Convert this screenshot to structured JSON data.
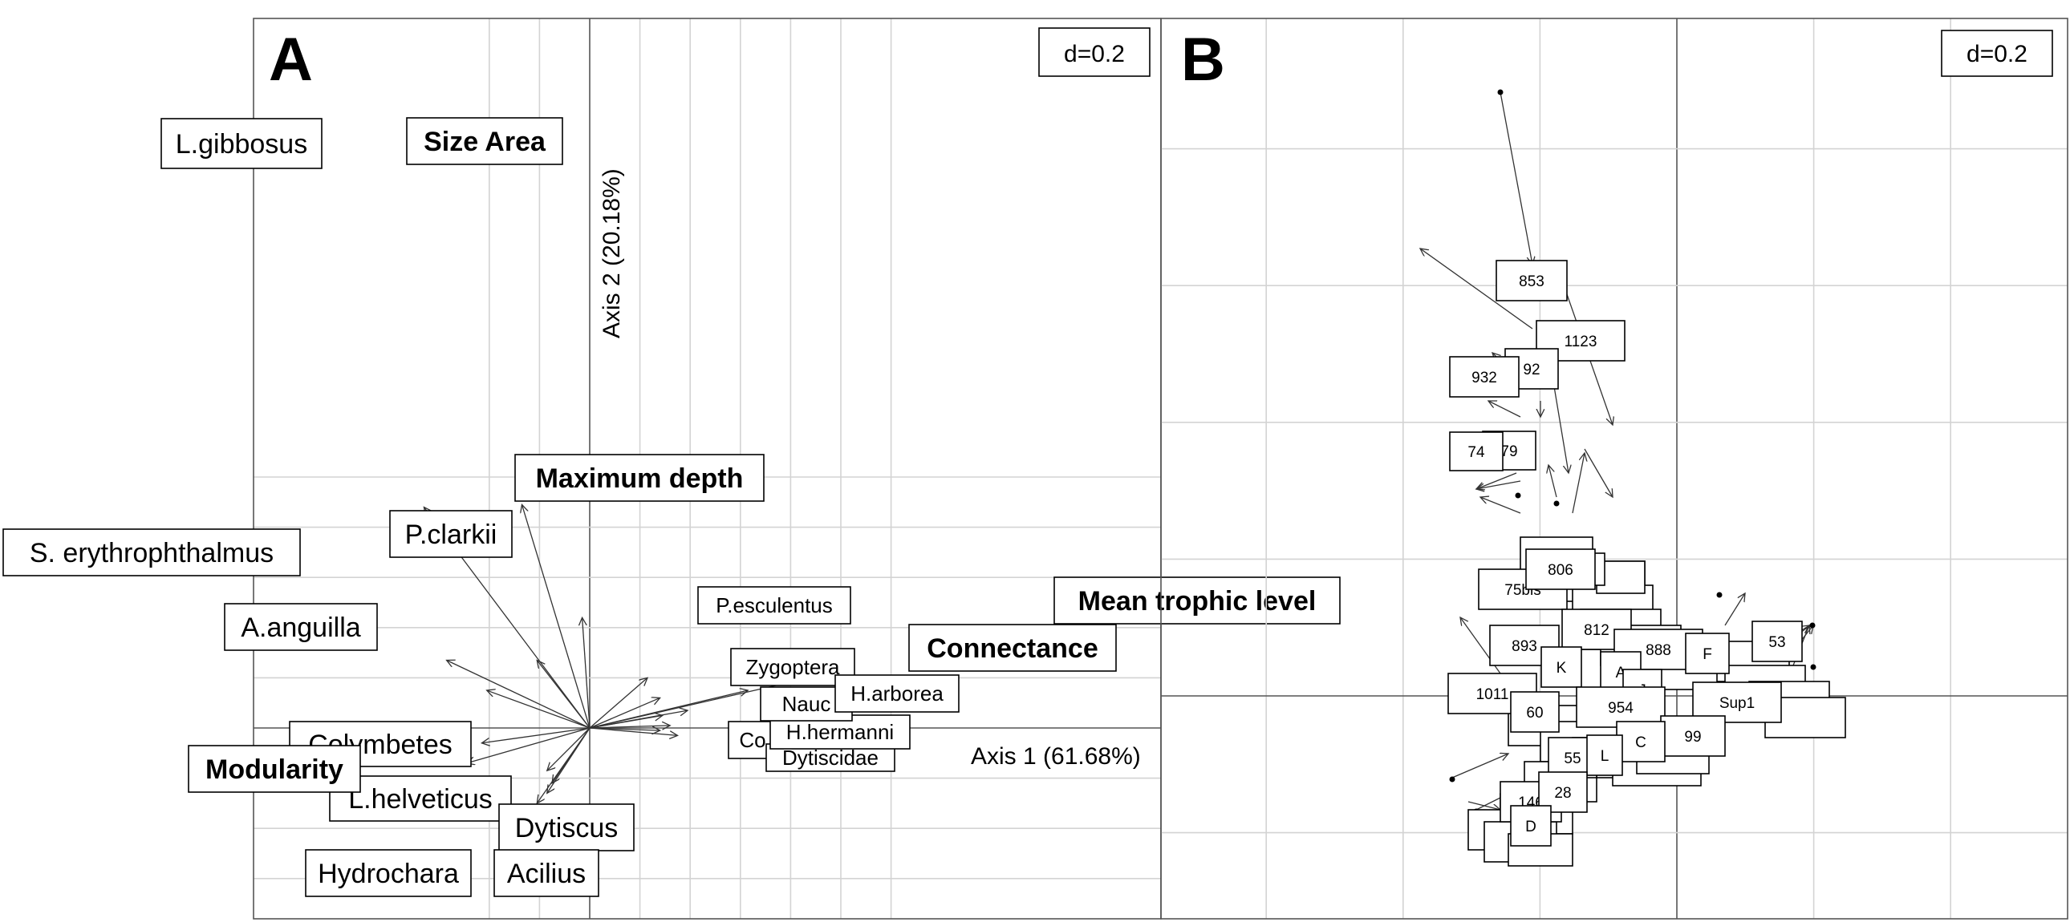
{
  "chart_data": [
    {
      "type": "biplot",
      "panel": "A",
      "scale_label": "d=0.2",
      "xlabel": "Axis 1 (61.68%)",
      "ylabel": "Axis 2 (20.18%)",
      "xlim": [
        -0.6,
        1.2
      ],
      "ylim": [
        -0.7,
        1.1
      ],
      "grid_step": 0.2,
      "variables": [
        {
          "label": "Size Area",
          "x": -0.27,
          "y": 0.89,
          "bold": true
        },
        {
          "label": "Maximum depth",
          "x": -0.03,
          "y": 0.44,
          "bold": true
        },
        {
          "label": "Mean trophic level",
          "x": 0.92,
          "y": 0.21,
          "bold": true
        },
        {
          "label": "Connectance",
          "x": 0.63,
          "y": 0.15,
          "bold": true
        },
        {
          "label": "Modularity",
          "x": -0.49,
          "y": -0.14,
          "bold": true
        }
      ],
      "species": [
        {
          "label": "L.gibbosus",
          "x": -0.66,
          "y": 0.88
        },
        {
          "label": "S. erythrophthalmus",
          "x": -0.57,
          "y": 0.27
        },
        {
          "label": "P.clarkii",
          "x": -0.21,
          "y": 0.27
        },
        {
          "label": "A.anguilla",
          "x": -0.41,
          "y": 0.15
        },
        {
          "label": "Colymbetes",
          "x": -0.43,
          "y": -0.06
        },
        {
          "label": "L.helveticus",
          "x": -0.17,
          "y": -0.17
        },
        {
          "label": "Dytiscus",
          "x": -0.15,
          "y": -0.22
        },
        {
          "label": "Acilius",
          "x": -0.17,
          "y": -0.26
        },
        {
          "label": "Hydrochara",
          "x": -0.21,
          "y": -0.3
        },
        {
          "label": "P.esculentus",
          "x": 0.23,
          "y": 0.2
        },
        {
          "label": "Zygoptera",
          "x": 0.28,
          "y": 0.12
        },
        {
          "label": "H.arborea",
          "x": 0.39,
          "y": 0.07
        },
        {
          "label": "Naucoridae",
          "x": 0.29,
          "y": 0.05
        },
        {
          "label": "H.hermanni",
          "x": 0.32,
          "y": 0.01
        },
        {
          "label": "Corixidae",
          "x": 0.28,
          "y": -0.01
        },
        {
          "label": "Dytiscidae",
          "x": 0.35,
          "y": -0.03
        }
      ],
      "visible_label_text": {
        "Colymbetes": "Colymbetes",
        "Naucoridae": "Nauc",
        "Corixidae": "Co",
        "Dytiscidae": "Dytiscidae"
      }
    },
    {
      "type": "scatter",
      "panel": "B",
      "scale_label": "d=0.2",
      "xlim": [
        -0.8,
        1.4
      ],
      "ylim": [
        -1.1,
        1.0
      ],
      "grid_step": 0.2,
      "sites": [
        {
          "label": "853",
          "x": -0.39,
          "y": 0.66
        },
        {
          "label": "1123",
          "x": -0.33,
          "y": 0.6
        },
        {
          "label": "92",
          "x": -0.37,
          "y": 0.54
        },
        {
          "label": "932",
          "x": -0.47,
          "y": 0.52
        },
        {
          "label": "79",
          "x": -0.41,
          "y": 0.42
        },
        {
          "label": "74",
          "x": -0.46,
          "y": 0.42
        },
        {
          "label": "806",
          "x": -0.37,
          "y": 0.22
        },
        {
          "label": "75bis",
          "x": -0.4,
          "y": 0.17
        },
        {
          "label": "812",
          "x": -0.35,
          "y": 0.1
        },
        {
          "label": "893",
          "x": -0.45,
          "y": 0.09
        },
        {
          "label": "888",
          "x": -0.26,
          "y": 0.07
        },
        {
          "label": "F",
          "x": -0.22,
          "y": 0.06
        },
        {
          "label": "53",
          "x": -0.12,
          "y": 0.08
        },
        {
          "label": "K",
          "x": -0.39,
          "y": 0.04
        },
        {
          "label": "A",
          "x": -0.32,
          "y": 0.03
        },
        {
          "label": "J",
          "x": -0.29,
          "y": 0.01
        },
        {
          "label": "Sup1",
          "x": -0.16,
          "y": -0.01
        },
        {
          "label": "1011",
          "x": -0.51,
          "y": 0.0
        },
        {
          "label": "954",
          "x": -0.32,
          "y": -0.02
        },
        {
          "label": "60",
          "x": -0.43,
          "y": -0.03
        },
        {
          "label": "99",
          "x": -0.26,
          "y": -0.07
        },
        {
          "label": "C",
          "x": -0.29,
          "y": -0.08
        },
        {
          "label": "55",
          "x": -0.38,
          "y": -0.1
        },
        {
          "label": "L",
          "x": -0.35,
          "y": -0.1
        },
        {
          "label": "28",
          "x": -0.37,
          "y": -0.16
        },
        {
          "label": "146",
          "x": -0.42,
          "y": -0.18
        },
        {
          "label": "D",
          "x": -0.41,
          "y": -0.21
        }
      ]
    }
  ]
}
